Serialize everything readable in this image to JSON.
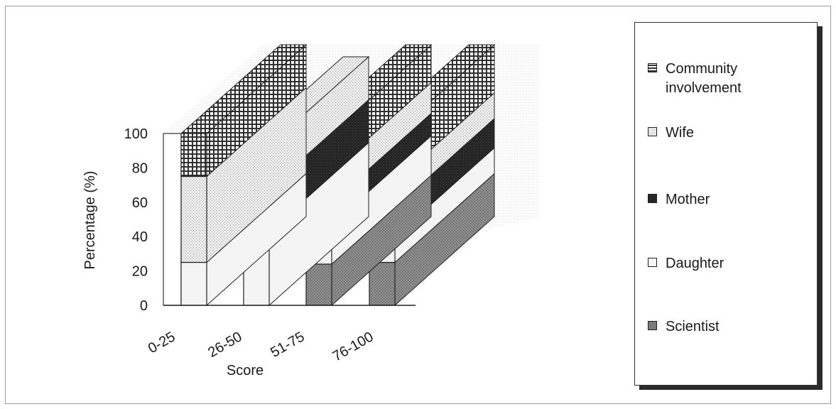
{
  "chart_data": {
    "type": "bar",
    "stacked": true,
    "three_d": true,
    "categories": [
      "0-25",
      "26-50",
      "51-75",
      "76-100"
    ],
    "series": [
      {
        "name": "Scientist",
        "values": [
          0,
          0,
          24,
          25
        ]
      },
      {
        "name": "Daughter",
        "values": [
          25,
          43,
          23,
          15
        ]
      },
      {
        "name": "Mother",
        "values": [
          0,
          25,
          13,
          17
        ]
      },
      {
        "name": "Wife",
        "values": [
          50,
          25,
          18,
          15
        ]
      },
      {
        "name": "Community involvement",
        "values": [
          25,
          0,
          22,
          28
        ]
      }
    ],
    "title": "",
    "xlabel": "Score",
    "ylabel": "Percentage (%)",
    "ylim": [
      0,
      100
    ],
    "yticks": [
      "0",
      "20",
      "40",
      "60",
      "80",
      "100"
    ],
    "legend_position": "right",
    "legend_order": [
      "Community involvement",
      "Wife",
      "Mother",
      "Daughter",
      "Scientist"
    ],
    "colors": {
      "Scientist": "#7a7a7a",
      "Daughter": "#f2f2f2",
      "Mother": "#262626",
      "Wife": "#e2e2e2",
      "Community involvement": "#3c3c3c"
    }
  }
}
